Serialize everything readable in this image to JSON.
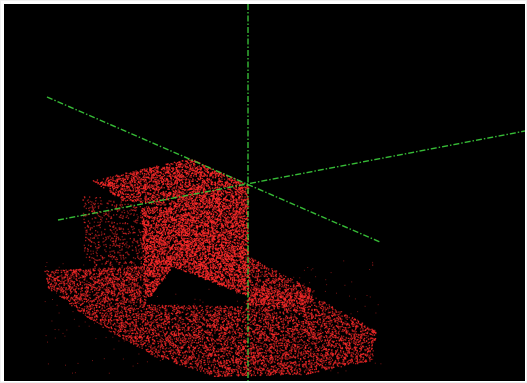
{
  "viewer": {
    "background_color": "#000000",
    "frame_color": "#ffffff",
    "point_color": "#ff2a2a",
    "axis_color": "#3ccf3c",
    "axis_style": "dash-dot",
    "axes": [
      "x-axis",
      "y-axis",
      "z-axis"
    ],
    "object": "point-cloud-model"
  }
}
